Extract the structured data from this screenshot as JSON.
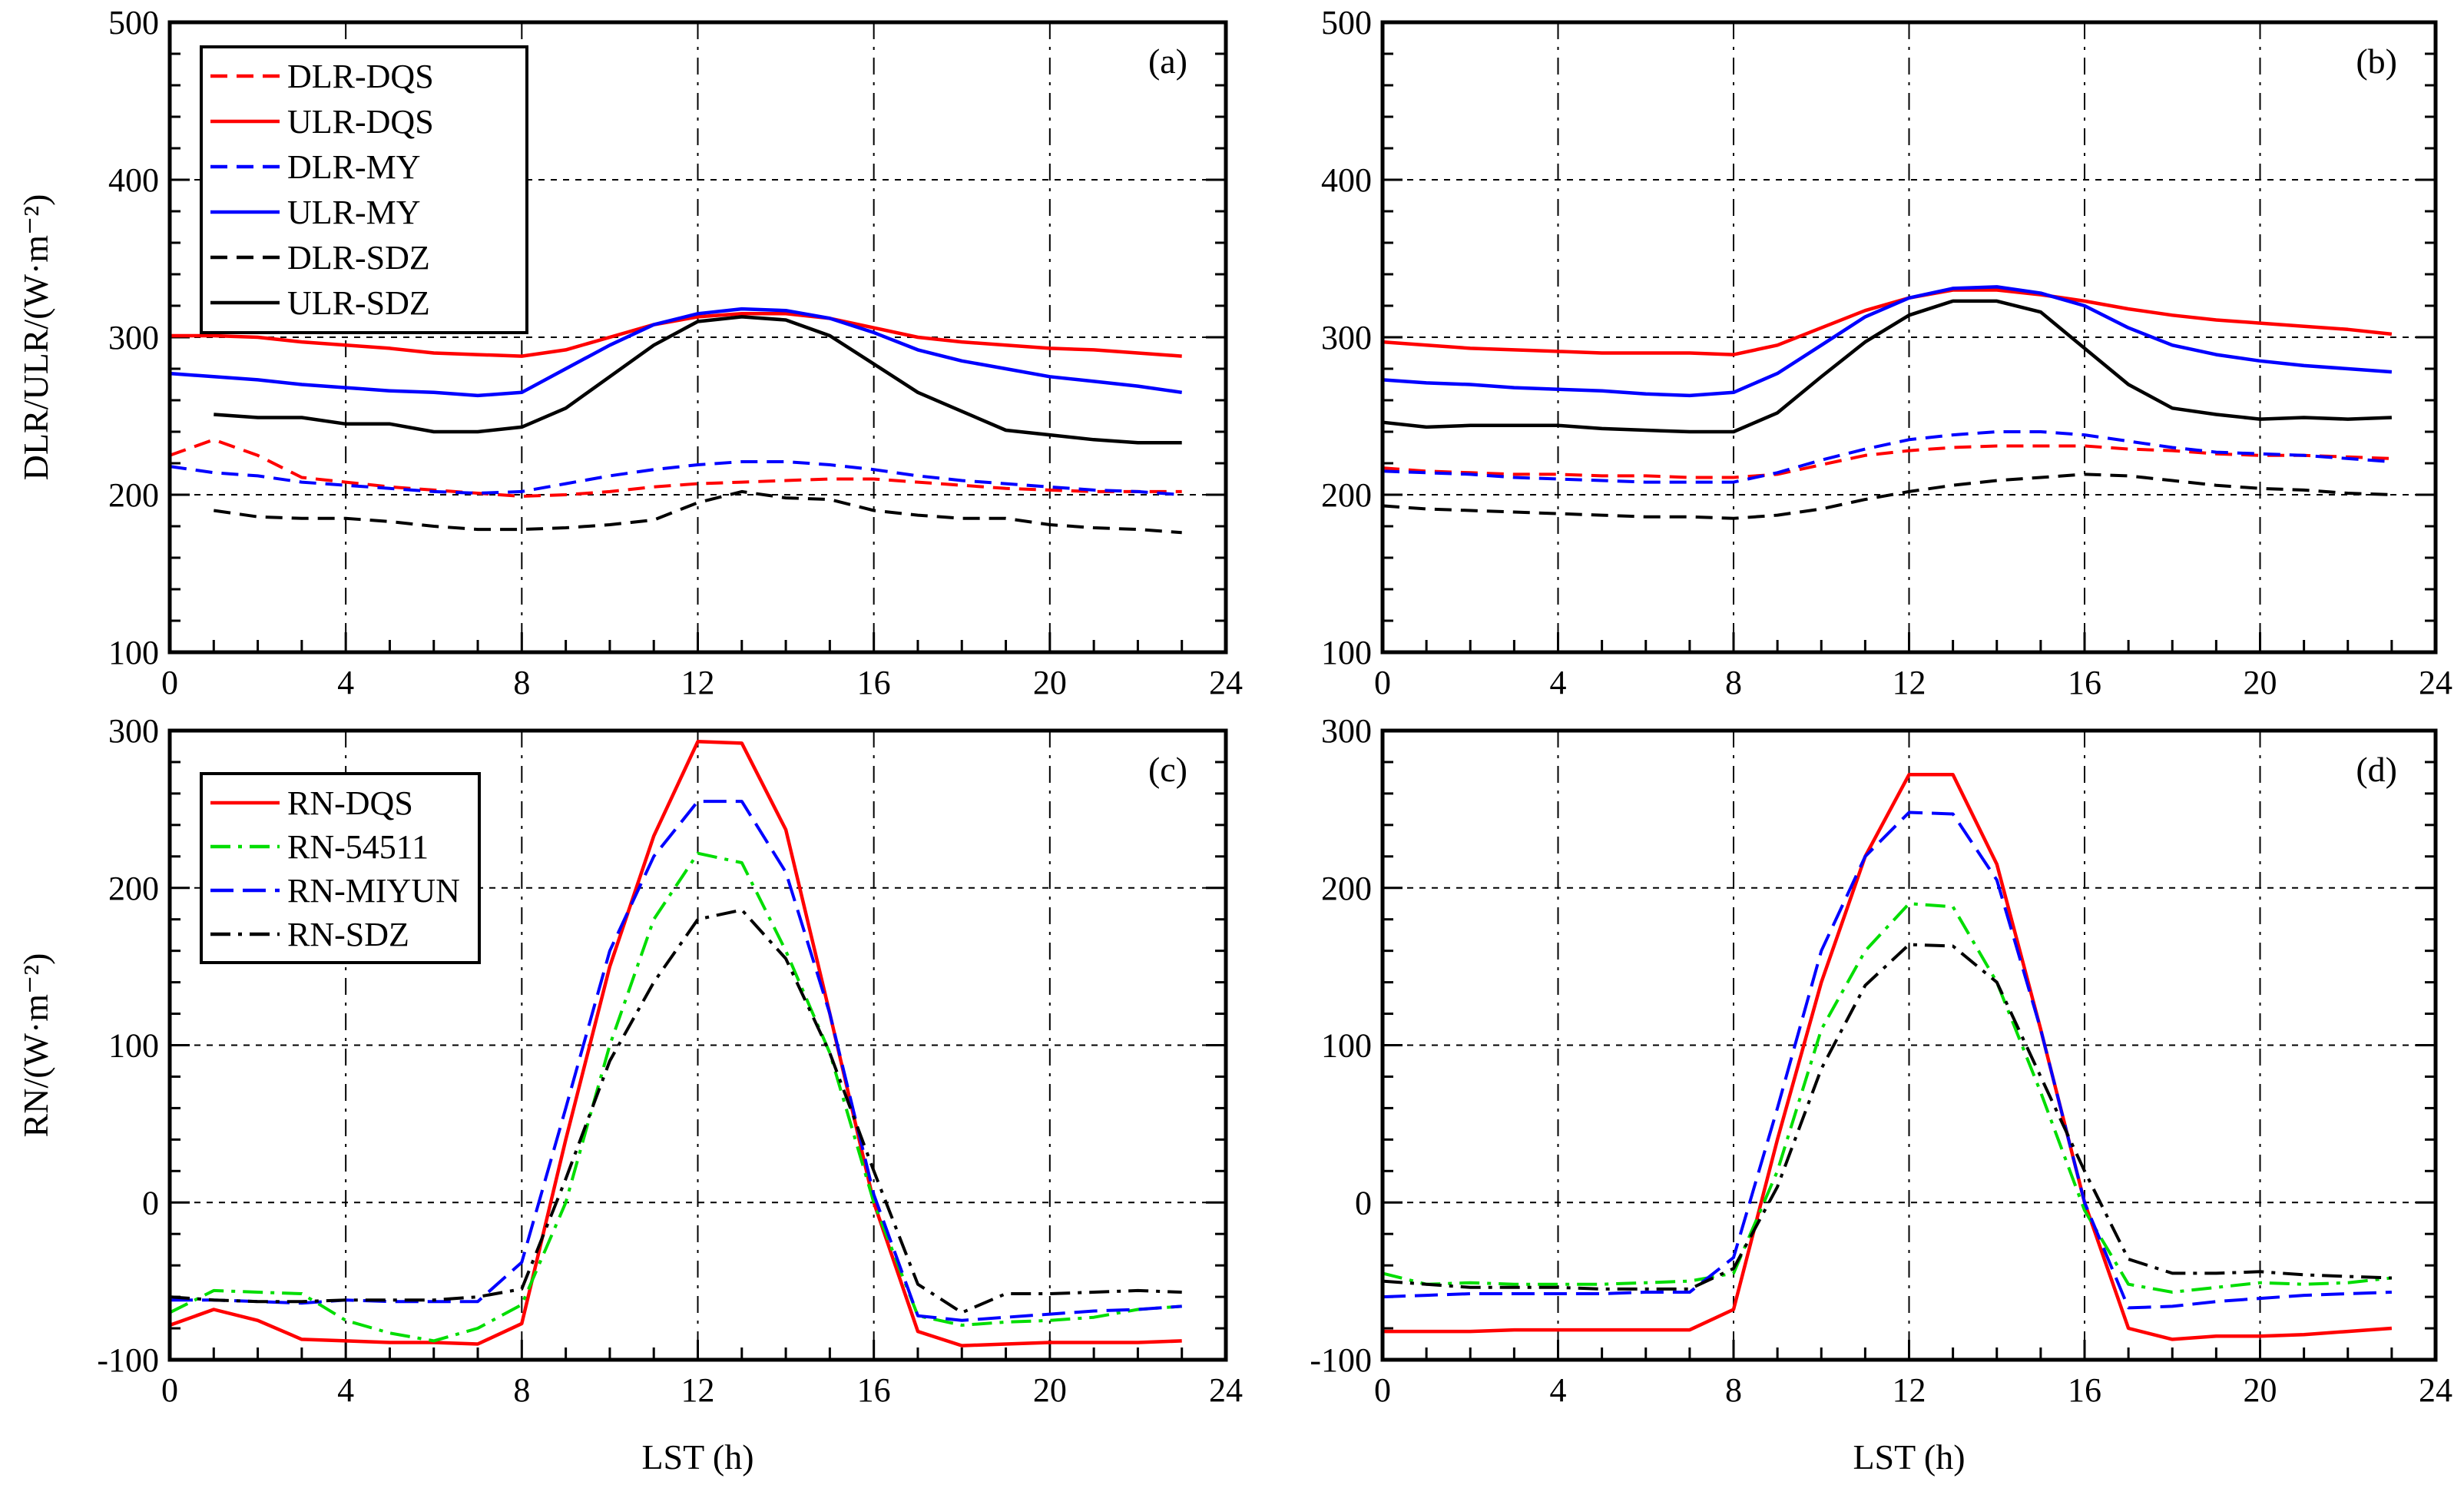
{
  "chart_data": [
    {
      "type": "line",
      "panel_label": "(a)",
      "ylabel": "DLR/ULR/(W·m⁻²)",
      "ylabel_parts": {
        "base": "DLR/ULR/(W·m",
        "sup": "-2",
        "end": ")"
      },
      "xlabel": "",
      "xlim": [
        0,
        24
      ],
      "ylim": [
        100,
        500
      ],
      "xticks": [
        "0",
        "4",
        "8",
        "12",
        "16",
        "20",
        "24"
      ],
      "yticks": [
        "100",
        "200",
        "300",
        "400",
        "500"
      ],
      "grid": true,
      "legend": "top-left",
      "x": [
        0,
        1,
        2,
        3,
        4,
        5,
        6,
        7,
        8,
        9,
        10,
        11,
        12,
        13,
        14,
        15,
        16,
        17,
        18,
        19,
        20,
        21,
        22,
        23
      ],
      "series": [
        {
          "name": "DLR-DQS",
          "color": "#ff0000",
          "style": "dashed",
          "values": [
            225,
            235,
            225,
            211,
            208,
            205,
            203,
            201,
            199,
            200,
            202,
            205,
            207,
            208,
            209,
            210,
            210,
            208,
            206,
            204,
            203,
            202,
            202,
            202
          ]
        },
        {
          "name": "ULR-DQS",
          "color": "#ff0000",
          "style": "solid",
          "values": [
            301,
            301,
            300,
            297,
            295,
            293,
            290,
            289,
            288,
            292,
            300,
            308,
            313,
            315,
            315,
            312,
            306,
            300,
            297,
            295,
            293,
            292,
            290,
            288
          ]
        },
        {
          "name": "DLR-MY",
          "color": "#0000ff",
          "style": "dashed",
          "values": [
            218,
            214,
            212,
            208,
            206,
            204,
            202,
            201,
            202,
            207,
            212,
            216,
            219,
            221,
            221,
            219,
            216,
            212,
            209,
            207,
            205,
            203,
            202,
            200
          ]
        },
        {
          "name": "ULR-MY",
          "color": "#0000ff",
          "style": "solid",
          "values": [
            277,
            275,
            273,
            270,
            268,
            266,
            265,
            263,
            265,
            280,
            295,
            308,
            315,
            318,
            317,
            312,
            303,
            292,
            285,
            280,
            275,
            272,
            269,
            265
          ]
        },
        {
          "name": "DLR-SDZ",
          "color": "#000000",
          "style": "dashed",
          "values": [
            null,
            190,
            186,
            185,
            185,
            183,
            180,
            178,
            178,
            179,
            181,
            184,
            195,
            202,
            198,
            197,
            190,
            187,
            185,
            185,
            181,
            179,
            178,
            176
          ]
        },
        {
          "name": "ULR-SDZ",
          "color": "#000000",
          "style": "solid",
          "values": [
            null,
            251,
            249,
            249,
            245,
            245,
            240,
            240,
            243,
            255,
            275,
            295,
            310,
            313,
            311,
            301,
            283,
            265,
            253,
            241,
            238,
            235,
            233,
            233
          ]
        }
      ]
    },
    {
      "type": "line",
      "panel_label": "(b)",
      "xlim": [
        0,
        24
      ],
      "ylim": [
        100,
        500
      ],
      "xticks": [
        "0",
        "4",
        "8",
        "12",
        "16",
        "20",
        "24"
      ],
      "yticks": [
        "100",
        "200",
        "300",
        "400",
        "500"
      ],
      "grid": true,
      "x": [
        0,
        1,
        2,
        3,
        4,
        5,
        6,
        7,
        8,
        9,
        10,
        11,
        12,
        13,
        14,
        15,
        16,
        17,
        18,
        19,
        20,
        21,
        22,
        23
      ],
      "series": [
        {
          "color": "#ff0000",
          "style": "dashed",
          "values": [
            217,
            215,
            214,
            213,
            213,
            212,
            212,
            211,
            211,
            213,
            219,
            225,
            228,
            230,
            231,
            231,
            231,
            229,
            228,
            226,
            225,
            225,
            224,
            223
          ]
        },
        {
          "color": "#ff0000",
          "style": "solid",
          "values": [
            297,
            295,
            293,
            292,
            291,
            290,
            290,
            290,
            289,
            295,
            306,
            317,
            325,
            330,
            330,
            327,
            323,
            318,
            314,
            311,
            309,
            307,
            305,
            302
          ]
        },
        {
          "color": "#0000ff",
          "style": "dashed",
          "values": [
            215,
            214,
            213,
            211,
            210,
            209,
            208,
            208,
            208,
            214,
            222,
            229,
            235,
            238,
            240,
            240,
            238,
            234,
            230,
            227,
            226,
            225,
            223,
            221
          ]
        },
        {
          "color": "#0000ff",
          "style": "solid",
          "values": [
            273,
            271,
            270,
            268,
            267,
            266,
            264,
            263,
            265,
            277,
            295,
            313,
            325,
            331,
            332,
            328,
            320,
            306,
            295,
            289,
            285,
            282,
            280,
            278
          ]
        },
        {
          "color": "#000000",
          "style": "dashed",
          "values": [
            193,
            191,
            190,
            189,
            188,
            187,
            186,
            186,
            185,
            187,
            191,
            197,
            202,
            206,
            209,
            211,
            213,
            212,
            209,
            206,
            204,
            203,
            201,
            200
          ]
        },
        {
          "color": "#000000",
          "style": "solid",
          "values": [
            246,
            243,
            244,
            244,
            244,
            242,
            241,
            240,
            240,
            252,
            275,
            297,
            314,
            323,
            323,
            316,
            293,
            270,
            255,
            251,
            248,
            249,
            248,
            249
          ]
        }
      ]
    },
    {
      "type": "line",
      "panel_label": "(c)",
      "ylabel": "RN/(W·m⁻²)",
      "ylabel_parts": {
        "base": "RN/(W·m",
        "sup": "-2",
        "end": ")"
      },
      "xlabel": "LST (h)",
      "xlim": [
        0,
        24
      ],
      "ylim": [
        -100,
        300
      ],
      "xticks": [
        "0",
        "4",
        "8",
        "12",
        "16",
        "20",
        "24"
      ],
      "yticks": [
        "-100",
        "0",
        "100",
        "200",
        "300"
      ],
      "grid": true,
      "legend": "top-left",
      "x": [
        0,
        1,
        2,
        3,
        4,
        5,
        6,
        7,
        8,
        9,
        10,
        11,
        12,
        13,
        14,
        15,
        16,
        17,
        18,
        19,
        20,
        21,
        22,
        23
      ],
      "series": [
        {
          "name": "RN-DQS",
          "color": "#ff0000",
          "style": "solid",
          "values": [
            -78,
            -68,
            -75,
            -87,
            -88,
            -89,
            -89,
            -90,
            -77,
            40,
            150,
            233,
            293,
            292,
            237,
            120,
            0,
            -82,
            -91,
            -90,
            -89,
            -89,
            -89,
            -88
          ]
        },
        {
          "name": "RN-54511",
          "color": "#00dd00",
          "style": "dashdot",
          "values": [
            -70,
            -56,
            -57,
            -58,
            -75,
            -83,
            -88,
            -80,
            -65,
            0,
            100,
            180,
            222,
            216,
            160,
            95,
            0,
            -72,
            -78,
            -76,
            -75,
            -73,
            -68,
            -66
          ]
        },
        {
          "name": "RN-MIYUN",
          "color": "#0000ff",
          "style": "longdash",
          "values": [
            -62,
            -62,
            -63,
            -64,
            -62,
            -63,
            -63,
            -63,
            -38,
            60,
            160,
            220,
            255,
            255,
            210,
            120,
            5,
            -72,
            -75,
            -73,
            -71,
            -69,
            -68,
            -66
          ]
        },
        {
          "name": "RN-SDZ",
          "color": "#000000",
          "style": "dashdot",
          "values": [
            -60,
            -62,
            -63,
            -63,
            -62,
            -62,
            -62,
            -60,
            -55,
            15,
            90,
            140,
            180,
            186,
            155,
            95,
            20,
            -52,
            -70,
            -58,
            -58,
            -57,
            -56,
            -57
          ]
        }
      ]
    },
    {
      "type": "line",
      "panel_label": "(d)",
      "xlabel": "LST (h)",
      "xlim": [
        0,
        24
      ],
      "ylim": [
        -100,
        300
      ],
      "xticks": [
        "0",
        "4",
        "8",
        "12",
        "16",
        "20",
        "24"
      ],
      "yticks": [
        "-100",
        "0",
        "100",
        "200",
        "300"
      ],
      "grid": true,
      "x": [
        0,
        1,
        2,
        3,
        4,
        5,
        6,
        7,
        8,
        9,
        10,
        11,
        12,
        13,
        14,
        15,
        16,
        17,
        18,
        19,
        20,
        21,
        22,
        23
      ],
      "series": [
        {
          "color": "#ff0000",
          "style": "solid",
          "values": [
            -82,
            -82,
            -82,
            -81,
            -81,
            -81,
            -81,
            -81,
            -68,
            40,
            140,
            220,
            272,
            272,
            215,
            110,
            0,
            -80,
            -87,
            -85,
            -85,
            -84,
            -82,
            -80
          ]
        },
        {
          "color": "#00dd00",
          "style": "dashdot",
          "values": [
            -45,
            -52,
            -51,
            -52,
            -52,
            -52,
            -51,
            -50,
            -45,
            20,
            110,
            160,
            190,
            188,
            140,
            70,
            -5,
            -52,
            -57,
            -54,
            -51,
            -52,
            -51,
            -48
          ]
        },
        {
          "color": "#0000ff",
          "style": "longdash",
          "values": [
            -60,
            -59,
            -58,
            -58,
            -58,
            -58,
            -57,
            -57,
            -35,
            60,
            160,
            220,
            248,
            247,
            205,
            110,
            0,
            -67,
            -66,
            -63,
            -61,
            -59,
            -58,
            -57
          ]
        },
        {
          "color": "#000000",
          "style": "dashdot",
          "values": [
            -50,
            -52,
            -54,
            -54,
            -54,
            -55,
            -55,
            -55,
            -42,
            10,
            85,
            138,
            164,
            163,
            140,
            80,
            20,
            -36,
            -45,
            -45,
            -44,
            -46,
            -47,
            -48
          ]
        }
      ]
    }
  ]
}
